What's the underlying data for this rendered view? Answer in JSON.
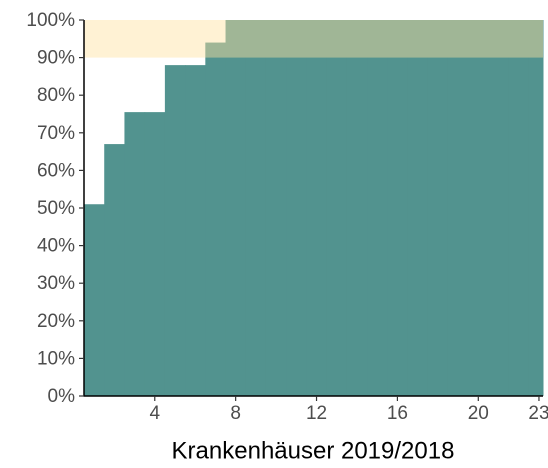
{
  "chart_data": {
    "type": "step-area",
    "x_label": "Krankenhäuser 2019/2018",
    "x": [
      1,
      2,
      3,
      4,
      5,
      6,
      7,
      8,
      9,
      10,
      11,
      12,
      13,
      14,
      15,
      16,
      17,
      18,
      19,
      20,
      21,
      22,
      23
    ],
    "values": [
      51,
      67,
      75.5,
      75.5,
      88,
      88,
      94,
      100,
      100,
      100,
      100,
      100,
      100,
      100,
      100,
      100,
      100,
      100,
      100,
      100,
      100,
      100,
      100
    ],
    "color": "#52938f",
    "band": {
      "ylim": [
        90,
        100
      ],
      "color": "#ffe3a0",
      "opacity": 0.45
    },
    "xlim": [
      0.5,
      23.2
    ],
    "xticks": [
      4,
      8,
      12,
      16,
      20,
      23
    ],
    "ylim": [
      0,
      100
    ],
    "yticks": [
      {
        "value": 0,
        "label": "0%"
      },
      {
        "value": 10,
        "label": "10%"
      },
      {
        "value": 20,
        "label": "20%"
      },
      {
        "value": 30,
        "label": "30%"
      },
      {
        "value": 40,
        "label": "40%"
      },
      {
        "value": 50,
        "label": "50%"
      },
      {
        "value": 60,
        "label": "60%"
      },
      {
        "value": 70,
        "label": "70%"
      },
      {
        "value": 80,
        "label": "80%"
      },
      {
        "value": 90,
        "label": "90%"
      },
      {
        "value": 100,
        "label": "100%"
      }
    ]
  }
}
